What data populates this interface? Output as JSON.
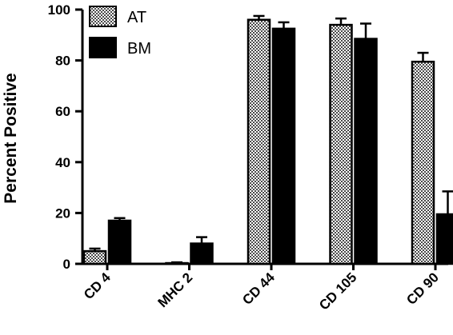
{
  "chart_data": {
    "type": "bar",
    "title": "",
    "xlabel": "",
    "ylabel": "Percent Positive",
    "ylim": [
      0,
      100
    ],
    "yticks": [
      0,
      20,
      40,
      60,
      80,
      100
    ],
    "categories": [
      "CD 4",
      "MHC 2",
      "CD 44",
      "CD 105",
      "CD 90"
    ],
    "series": [
      {
        "name": "AT",
        "values": [
          5,
          0.3,
          96,
          94,
          79.5
        ],
        "errors": [
          1,
          0.3,
          1.5,
          2.5,
          3.5
        ],
        "pattern": "checker",
        "color": "#000000"
      },
      {
        "name": "BM",
        "values": [
          17,
          8,
          92.5,
          88.5,
          19.5
        ],
        "errors": [
          1,
          2.5,
          2.5,
          6,
          9
        ],
        "pattern": "solid",
        "color": "#000000"
      }
    ],
    "legend": {
      "placement": "top-left"
    },
    "grid": false,
    "error_bars": true
  }
}
